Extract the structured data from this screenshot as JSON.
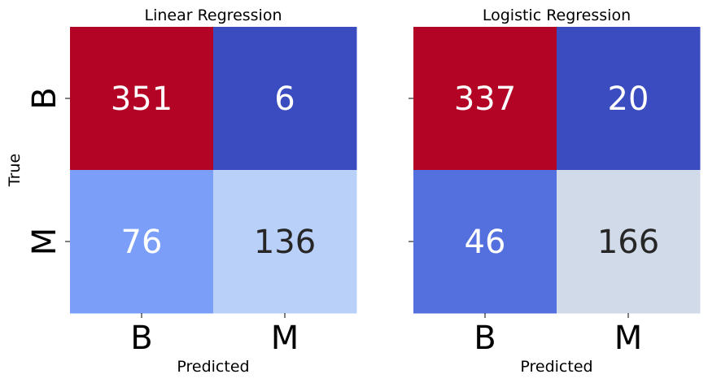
{
  "chart_data": [
    {
      "type": "heatmap",
      "title": "Linear Regression",
      "xlabel": "Predicted",
      "ylabel": "True",
      "x_categories": [
        "B",
        "M"
      ],
      "y_categories": [
        "B",
        "M"
      ],
      "values": [
        [
          351,
          6
        ],
        [
          76,
          136
        ]
      ],
      "cell_colors": [
        [
          "#b40426",
          "#3b4cc0"
        ],
        [
          "#7b9ff9",
          "#b9d0f9"
        ]
      ],
      "text_colors": [
        [
          "#ffffff",
          "#ffffff"
        ],
        [
          "#ffffff",
          "#262626"
        ]
      ],
      "colorbar": false
    },
    {
      "type": "heatmap",
      "title": "Logistic Regression",
      "xlabel": "Predicted",
      "ylabel": "",
      "x_categories": [
        "B",
        "M"
      ],
      "y_categories": [
        "B",
        "M"
      ],
      "show_y_tick_labels": false,
      "values": [
        [
          337,
          20
        ],
        [
          46,
          166
        ]
      ],
      "cell_colors": [
        [
          "#b40426",
          "#3b4cc0"
        ],
        [
          "#5470de",
          "#d1dae9"
        ]
      ],
      "text_colors": [
        [
          "#ffffff",
          "#ffffff"
        ],
        [
          "#ffffff",
          "#262626"
        ]
      ],
      "colorbar": false
    }
  ]
}
